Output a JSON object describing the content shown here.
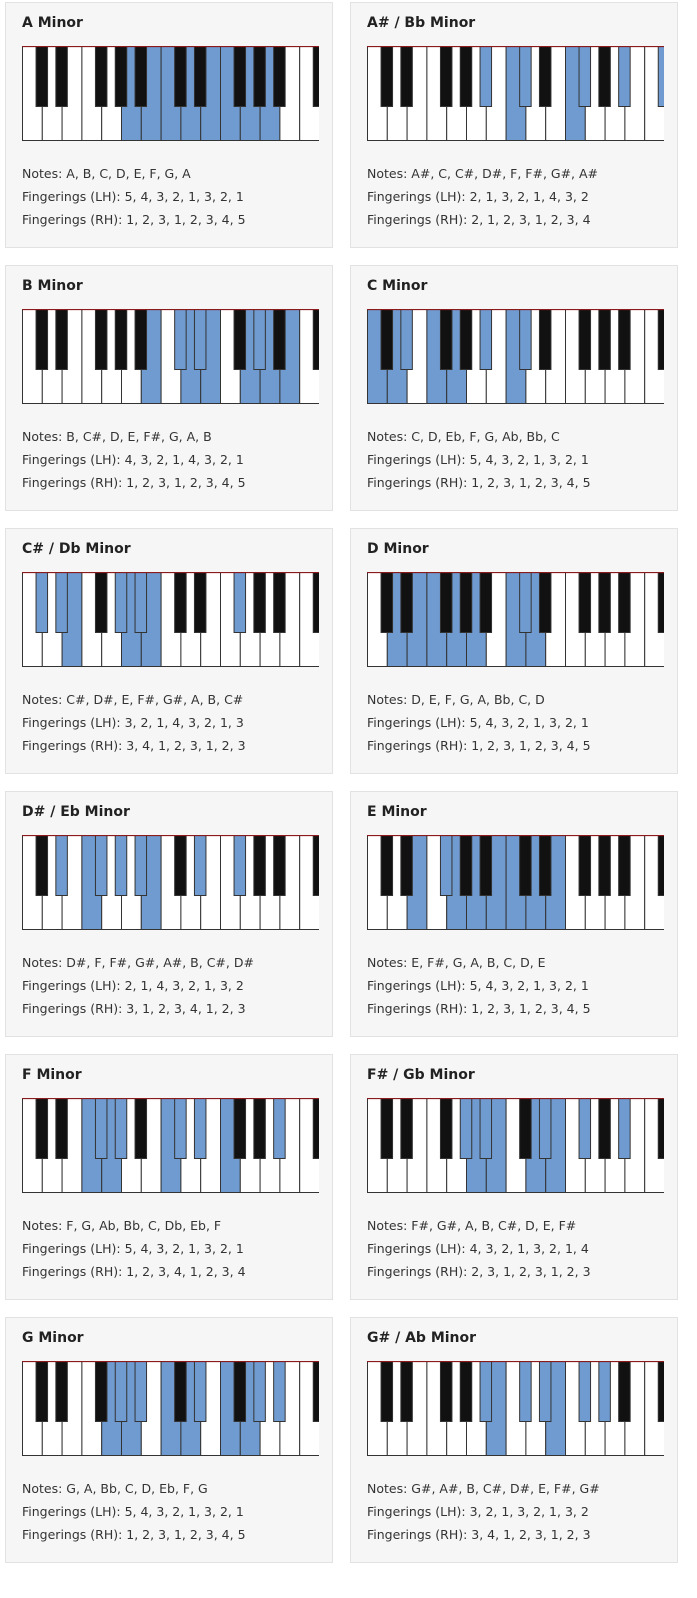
{
  "colors": {
    "highlight": "#6f9bd0",
    "black_key": "#111111",
    "white_key": "#ffffff",
    "outline": "#333333",
    "top_edge": "#8b1a1a",
    "card_bg": "#f6f6f6"
  },
  "labels": {
    "notes": "Notes: ",
    "fingerings_lh": "Fingerings (LH): ",
    "fingerings_rh": "Fingerings (RH): "
  },
  "keyboard_layout": {
    "white_keys": 15,
    "black_after_white": [
      0,
      1,
      3,
      4,
      5,
      7,
      8,
      10,
      11,
      12,
      14
    ]
  },
  "scales": [
    {
      "title": "A Minor",
      "notes": "A, B, C, D, E, F, G, A",
      "lh": "5, 4, 3, 2, 1, 3, 2, 1",
      "rh": "1, 2, 3, 1, 2, 3, 4, 5",
      "white_keys_highlighted": [
        5,
        6,
        7,
        8,
        9,
        10,
        11,
        12
      ],
      "black_keys_highlighted": []
    },
    {
      "title": "A# / Bb Minor",
      "notes": "A#, C, C#, D#, F, F#, G#, A#",
      "lh": "2, 1, 3, 2, 1, 4, 3, 2",
      "rh": "2, 1, 2, 3, 1, 2, 3, 4",
      "white_keys_highlighted": [
        7,
        10
      ],
      "black_keys_highlighted": [
        4,
        5,
        7,
        9,
        10,
        11
      ]
    },
    {
      "title": "B Minor",
      "notes": "B, C#, D, E, F#, G, A, B",
      "lh": "4, 3, 2, 1, 4, 3, 2, 1",
      "rh": "1, 2, 3, 1, 2, 3, 4, 5",
      "white_keys_highlighted": [
        6,
        8,
        9,
        11,
        12,
        13
      ],
      "black_keys_highlighted": [
        5,
        6,
        8
      ]
    },
    {
      "title": "C Minor",
      "notes": "C, D, Eb, F, G, Ab, Bb, C",
      "lh": "5, 4, 3, 2, 1, 3, 2, 1",
      "rh": "1, 2, 3, 1, 2, 3, 4, 5",
      "white_keys_highlighted": [
        0,
        1,
        3,
        4,
        7
      ],
      "black_keys_highlighted": [
        1,
        4,
        5
      ]
    },
    {
      "title": "C# / Db Minor",
      "notes": "C#, D#, E, F#, G#, A, B, C#",
      "lh": "3, 2, 1, 4, 3, 2, 1, 3",
      "rh": "3, 4, 1, 2, 3, 1, 2, 3",
      "white_keys_highlighted": [
        2,
        5,
        6
      ],
      "black_keys_highlighted": [
        0,
        1,
        3,
        4,
        7
      ]
    },
    {
      "title": "D Minor",
      "notes": "D, E, F, G, A, Bb, C, D",
      "lh": "5, 4, 3, 2, 1, 3, 2, 1",
      "rh": "1, 2, 3, 1, 2, 3, 4, 5",
      "white_keys_highlighted": [
        1,
        2,
        3,
        4,
        5,
        7,
        8
      ],
      "black_keys_highlighted": [
        5
      ]
    },
    {
      "title": "D# / Eb Minor",
      "notes": "D#, F, F#, G#, A#, B, C#, D#",
      "lh": "2, 1, 4, 3, 2, 1, 3, 2",
      "rh": "3, 1, 2, 3, 4, 1, 2, 3",
      "white_keys_highlighted": [
        3,
        6
      ],
      "black_keys_highlighted": [
        1,
        2,
        3,
        4,
        6,
        7
      ]
    },
    {
      "title": "E Minor",
      "notes": "E, F#, G, A, B, C, D, E",
      "lh": "5, 4, 3, 2, 1, 3, 2, 1",
      "rh": "1, 2, 3, 1, 2, 3, 4, 5",
      "white_keys_highlighted": [
        2,
        4,
        5,
        6,
        7,
        8,
        9
      ],
      "black_keys_highlighted": [
        2
      ]
    },
    {
      "title": "F Minor",
      "notes": "F, G, Ab, Bb, C, Db, Eb, F",
      "lh": "5, 4, 3, 2, 1, 3, 2, 1",
      "rh": "1, 2, 3, 4, 1, 2, 3, 4",
      "white_keys_highlighted": [
        3,
        4,
        7,
        10
      ],
      "black_keys_highlighted": [
        2,
        3,
        5,
        6,
        9
      ]
    },
    {
      "title": "F# / Gb Minor",
      "notes": "F#, G#, A, B, C#, D, E, F#",
      "lh": "4, 3, 2, 1, 3, 2, 1, 4",
      "rh": "2, 3, 1, 2, 3, 1, 2, 3",
      "white_keys_highlighted": [
        5,
        6,
        8,
        9
      ],
      "black_keys_highlighted": [
        3,
        4,
        6,
        7,
        9
      ]
    },
    {
      "title": "G Minor",
      "notes": "G, A, Bb, C, D, Eb, F, G",
      "lh": "5, 4, 3, 2, 1, 3, 2, 1",
      "rh": "1, 2, 3, 1, 2, 3, 4, 5",
      "white_keys_highlighted": [
        4,
        5,
        7,
        8,
        10,
        11
      ],
      "black_keys_highlighted": [
        3,
        4,
        6,
        8,
        9
      ]
    },
    {
      "title": "G# / Ab Minor",
      "notes": "G#, A#, B, C#, D#, E, F#, G#",
      "lh": "3, 2, 1, 3, 2, 1, 3, 2",
      "rh": "3, 4, 1, 2, 3, 1, 2, 3",
      "white_keys_highlighted": [
        6,
        9
      ],
      "black_keys_highlighted": [
        4,
        5,
        6,
        7,
        8
      ]
    }
  ]
}
